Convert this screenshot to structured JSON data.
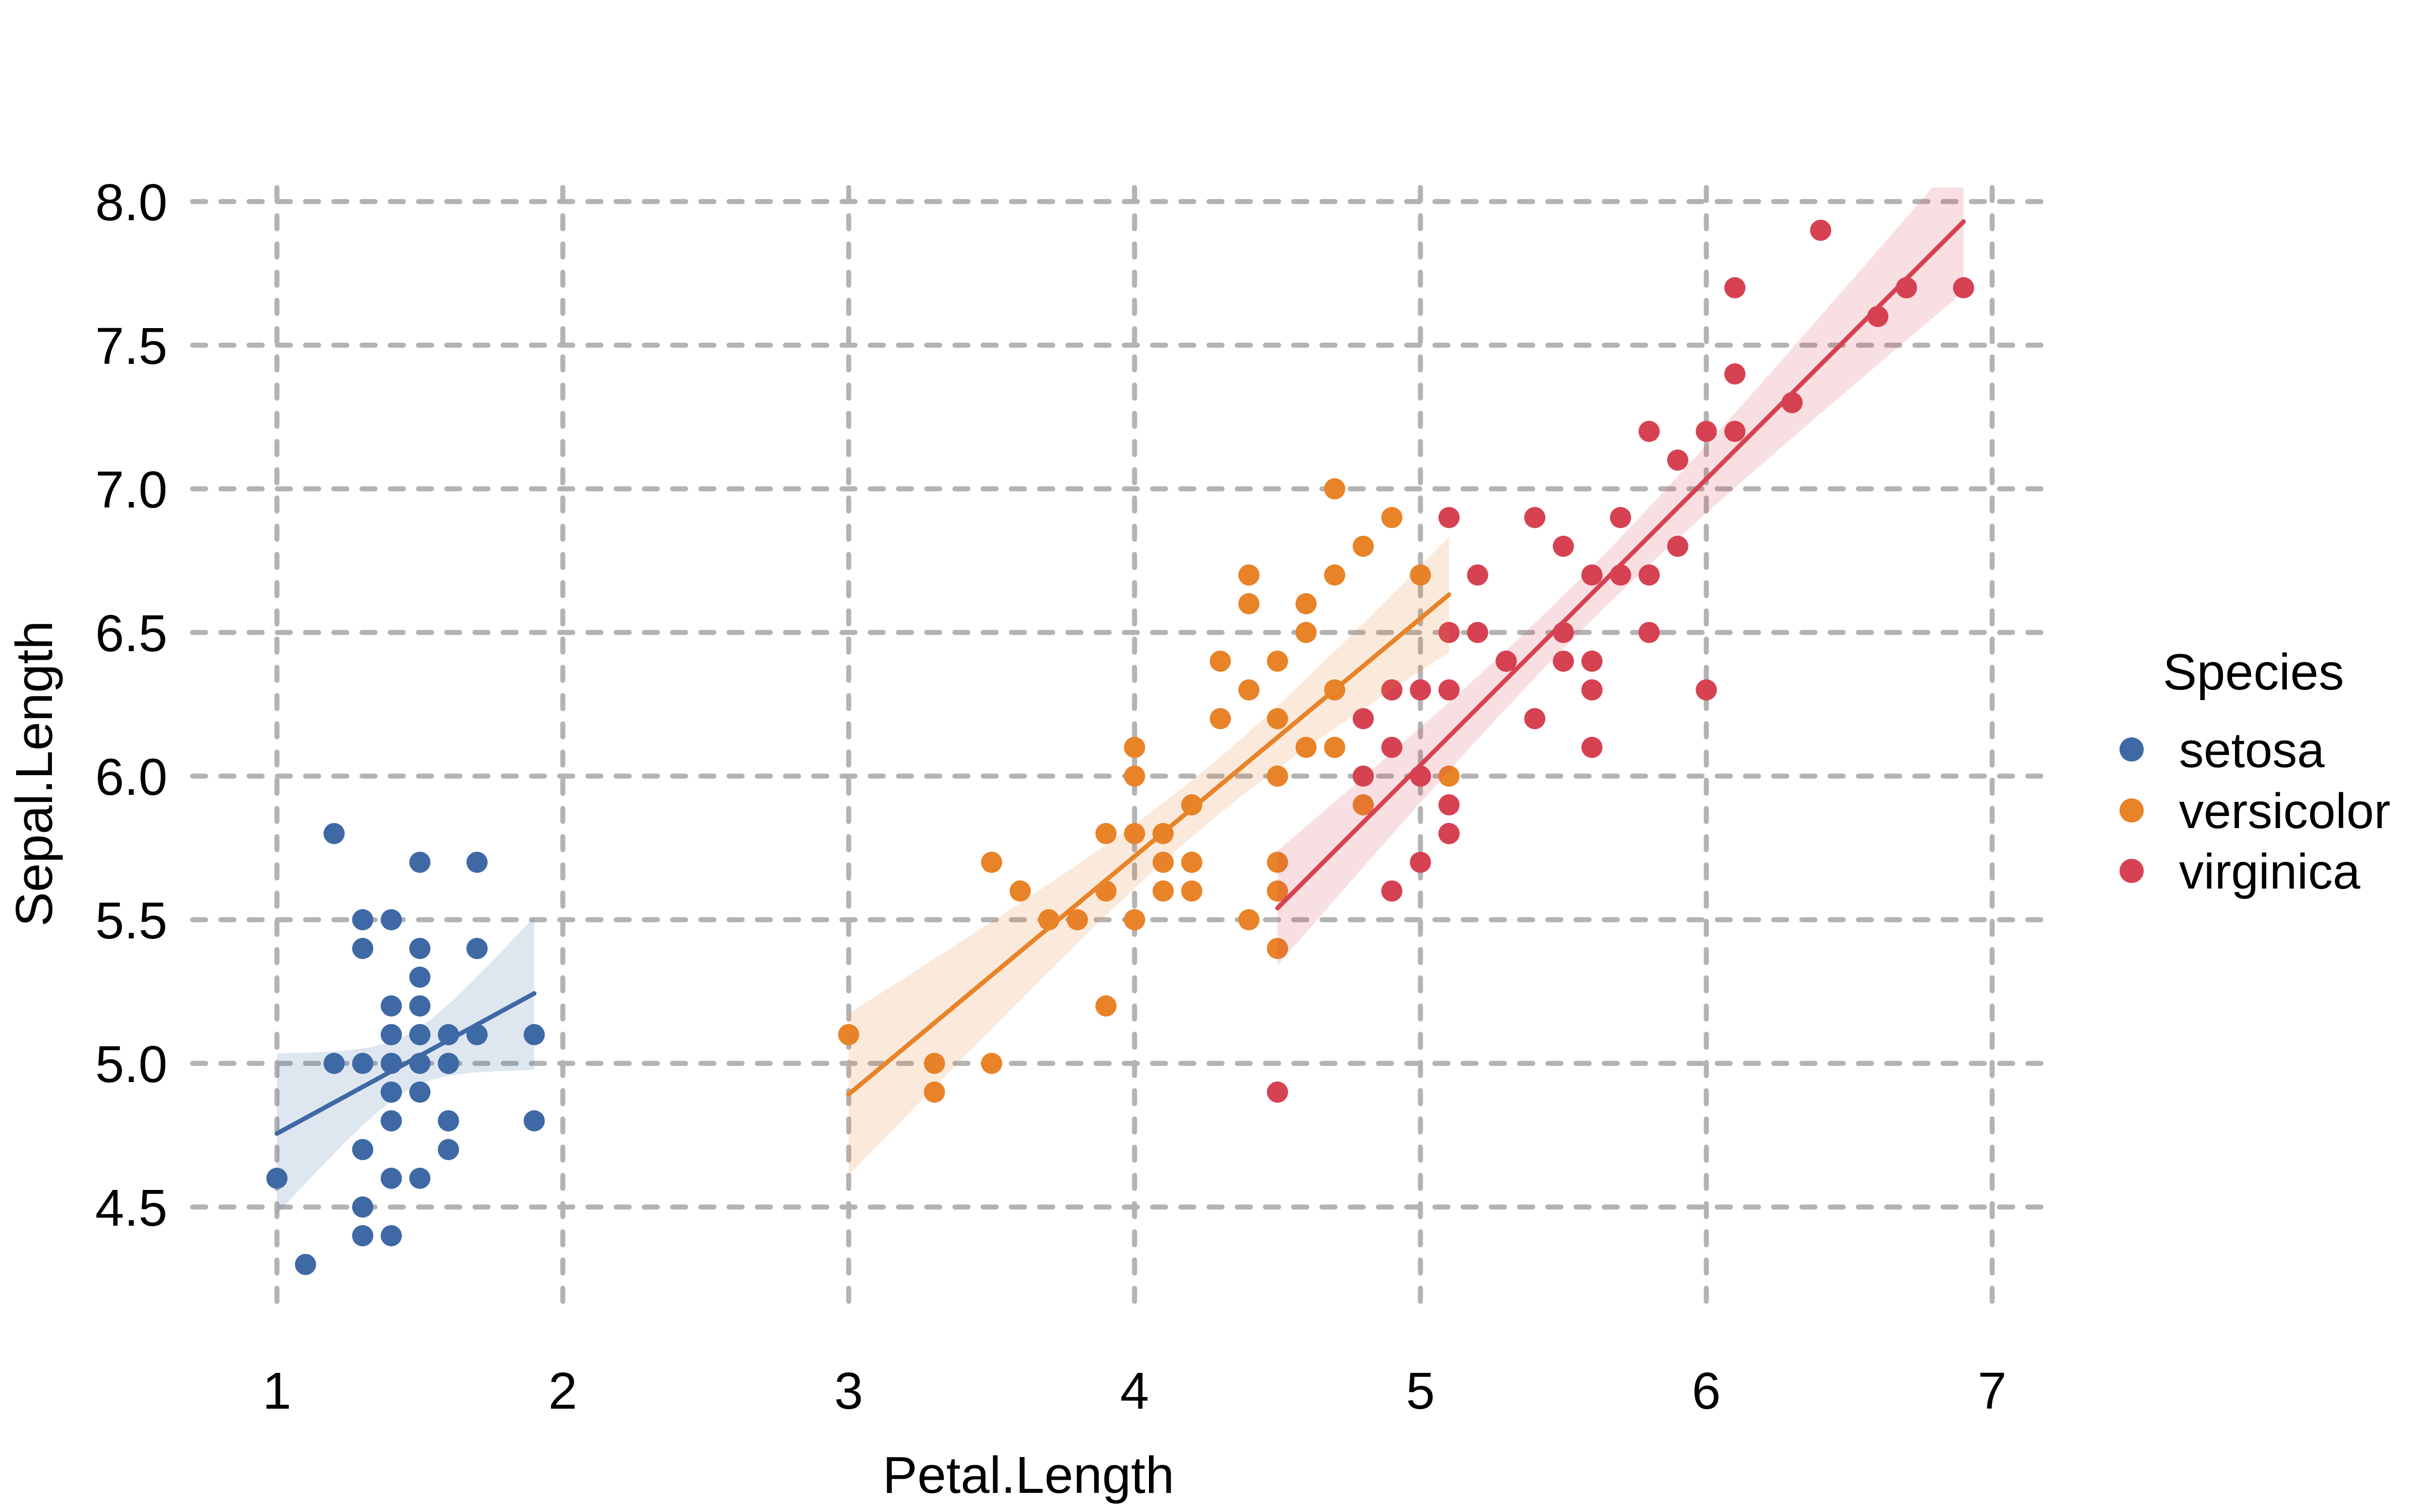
{
  "chart_data": {
    "type": "scatter",
    "title": "",
    "xlabel": "Petal.Length",
    "ylabel": "Sepal.Length",
    "x_ticks": [
      1,
      2,
      3,
      4,
      5,
      6,
      7
    ],
    "x_tick_labels": [
      "1",
      "2",
      "3",
      "4",
      "5",
      "6",
      "7"
    ],
    "y_ticks": [
      4.5,
      5.0,
      5.5,
      6.0,
      6.5,
      7.0,
      7.5,
      8.0
    ],
    "y_tick_labels": [
      "4.5",
      "5.0",
      "5.5",
      "6.0",
      "6.5",
      "7.0",
      "7.5",
      "8.0"
    ],
    "xlim": [
      0.705,
      7.195
    ],
    "ylim": [
      4.119,
      8.049
    ],
    "grid": {
      "style": "dashed",
      "color": "#b3b3b3",
      "major_only": true
    },
    "background_color": "#ffffff",
    "smoother": {
      "type": "linear-regression",
      "ci_level": 0.95,
      "t_value": 2.0106,
      "band_opacity": 0.17
    },
    "legend": {
      "title": "Species",
      "position": "right"
    },
    "series": [
      {
        "name": "setosa",
        "color": "#3e69a5",
        "points": [
          [
            1.4,
            5.1
          ],
          [
            1.4,
            4.9
          ],
          [
            1.3,
            4.7
          ],
          [
            1.5,
            4.6
          ],
          [
            1.4,
            5.0
          ],
          [
            1.7,
            5.4
          ],
          [
            1.4,
            4.6
          ],
          [
            1.5,
            5.0
          ],
          [
            1.4,
            4.4
          ],
          [
            1.5,
            4.9
          ],
          [
            1.5,
            5.4
          ],
          [
            1.6,
            4.8
          ],
          [
            1.4,
            4.8
          ],
          [
            1.1,
            4.3
          ],
          [
            1.2,
            5.8
          ],
          [
            1.5,
            5.7
          ],
          [
            1.3,
            5.4
          ],
          [
            1.4,
            5.1
          ],
          [
            1.7,
            5.7
          ],
          [
            1.5,
            5.1
          ],
          [
            1.7,
            5.4
          ],
          [
            1.5,
            5.1
          ],
          [
            1.0,
            4.6
          ],
          [
            1.7,
            5.1
          ],
          [
            1.9,
            4.8
          ],
          [
            1.6,
            5.0
          ],
          [
            1.6,
            5.0
          ],
          [
            1.5,
            5.2
          ],
          [
            1.4,
            5.2
          ],
          [
            1.6,
            4.7
          ],
          [
            1.6,
            4.8
          ],
          [
            1.5,
            5.4
          ],
          [
            1.5,
            5.2
          ],
          [
            1.4,
            5.5
          ],
          [
            1.5,
            4.9
          ],
          [
            1.2,
            5.0
          ],
          [
            1.3,
            5.5
          ],
          [
            1.4,
            4.9
          ],
          [
            1.3,
            4.4
          ],
          [
            1.5,
            5.1
          ],
          [
            1.3,
            5.0
          ],
          [
            1.3,
            4.5
          ],
          [
            1.3,
            4.4
          ],
          [
            1.6,
            5.0
          ],
          [
            1.9,
            5.1
          ],
          [
            1.4,
            4.8
          ],
          [
            1.6,
            5.1
          ],
          [
            1.4,
            4.6
          ],
          [
            1.5,
            5.3
          ],
          [
            1.4,
            5.0
          ]
        ]
      },
      {
        "name": "versicolor",
        "color": "#e88328",
        "points": [
          [
            4.7,
            7.0
          ],
          [
            4.5,
            6.4
          ],
          [
            4.9,
            6.9
          ],
          [
            4.0,
            5.5
          ],
          [
            4.6,
            6.5
          ],
          [
            4.5,
            5.7
          ],
          [
            4.7,
            6.3
          ],
          [
            3.3,
            4.9
          ],
          [
            4.6,
            6.6
          ],
          [
            3.9,
            5.2
          ],
          [
            3.5,
            5.0
          ],
          [
            4.2,
            5.9
          ],
          [
            4.0,
            6.0
          ],
          [
            4.7,
            6.1
          ],
          [
            3.6,
            5.6
          ],
          [
            4.4,
            6.7
          ],
          [
            4.5,
            5.6
          ],
          [
            4.1,
            5.8
          ],
          [
            4.5,
            6.2
          ],
          [
            3.9,
            5.6
          ],
          [
            4.8,
            5.9
          ],
          [
            4.0,
            6.1
          ],
          [
            4.9,
            6.3
          ],
          [
            4.7,
            6.1
          ],
          [
            4.3,
            6.4
          ],
          [
            4.4,
            6.6
          ],
          [
            4.8,
            6.8
          ],
          [
            5.0,
            6.7
          ],
          [
            4.5,
            6.0
          ],
          [
            3.5,
            5.7
          ],
          [
            3.8,
            5.5
          ],
          [
            3.7,
            5.5
          ],
          [
            3.9,
            5.8
          ],
          [
            5.1,
            6.0
          ],
          [
            4.5,
            5.4
          ],
          [
            4.5,
            6.0
          ],
          [
            4.7,
            6.7
          ],
          [
            4.4,
            6.3
          ],
          [
            4.1,
            5.6
          ],
          [
            4.0,
            5.5
          ],
          [
            4.4,
            5.5
          ],
          [
            4.6,
            6.1
          ],
          [
            4.0,
            5.8
          ],
          [
            3.3,
            5.0
          ],
          [
            4.2,
            5.6
          ],
          [
            4.2,
            5.7
          ],
          [
            4.2,
            5.7
          ],
          [
            4.3,
            6.2
          ],
          [
            3.0,
            5.1
          ],
          [
            4.1,
            5.7
          ]
        ]
      },
      {
        "name": "virginica",
        "color": "#d64252",
        "points": [
          [
            6.0,
            6.3
          ],
          [
            5.1,
            5.8
          ],
          [
            5.9,
            7.1
          ],
          [
            5.6,
            6.3
          ],
          [
            5.8,
            6.5
          ],
          [
            6.6,
            7.6
          ],
          [
            4.5,
            4.9
          ],
          [
            6.3,
            7.3
          ],
          [
            5.8,
            6.7
          ],
          [
            6.1,
            7.2
          ],
          [
            5.1,
            6.5
          ],
          [
            5.3,
            6.4
          ],
          [
            5.5,
            6.8
          ],
          [
            5.0,
            5.7
          ],
          [
            5.1,
            5.8
          ],
          [
            5.3,
            6.4
          ],
          [
            5.5,
            6.5
          ],
          [
            6.7,
            7.7
          ],
          [
            6.9,
            7.7
          ],
          [
            5.0,
            6.0
          ],
          [
            5.7,
            6.9
          ],
          [
            4.9,
            5.6
          ],
          [
            6.7,
            7.7
          ],
          [
            4.9,
            6.3
          ],
          [
            5.7,
            6.7
          ],
          [
            6.0,
            7.2
          ],
          [
            4.8,
            6.2
          ],
          [
            4.9,
            6.1
          ],
          [
            5.6,
            6.4
          ],
          [
            5.8,
            7.2
          ],
          [
            6.1,
            7.4
          ],
          [
            6.4,
            7.9
          ],
          [
            5.6,
            6.4
          ],
          [
            5.1,
            6.3
          ],
          [
            5.6,
            6.1
          ],
          [
            6.1,
            7.7
          ],
          [
            5.6,
            6.3
          ],
          [
            5.5,
            6.4
          ],
          [
            4.8,
            6.0
          ],
          [
            5.4,
            6.9
          ],
          [
            5.6,
            6.7
          ],
          [
            5.1,
            6.9
          ],
          [
            5.1,
            5.8
          ],
          [
            5.9,
            6.8
          ],
          [
            5.7,
            6.7
          ],
          [
            5.2,
            6.7
          ],
          [
            5.0,
            6.3
          ],
          [
            5.2,
            6.5
          ],
          [
            5.4,
            6.2
          ],
          [
            5.1,
            5.9
          ]
        ]
      }
    ]
  }
}
